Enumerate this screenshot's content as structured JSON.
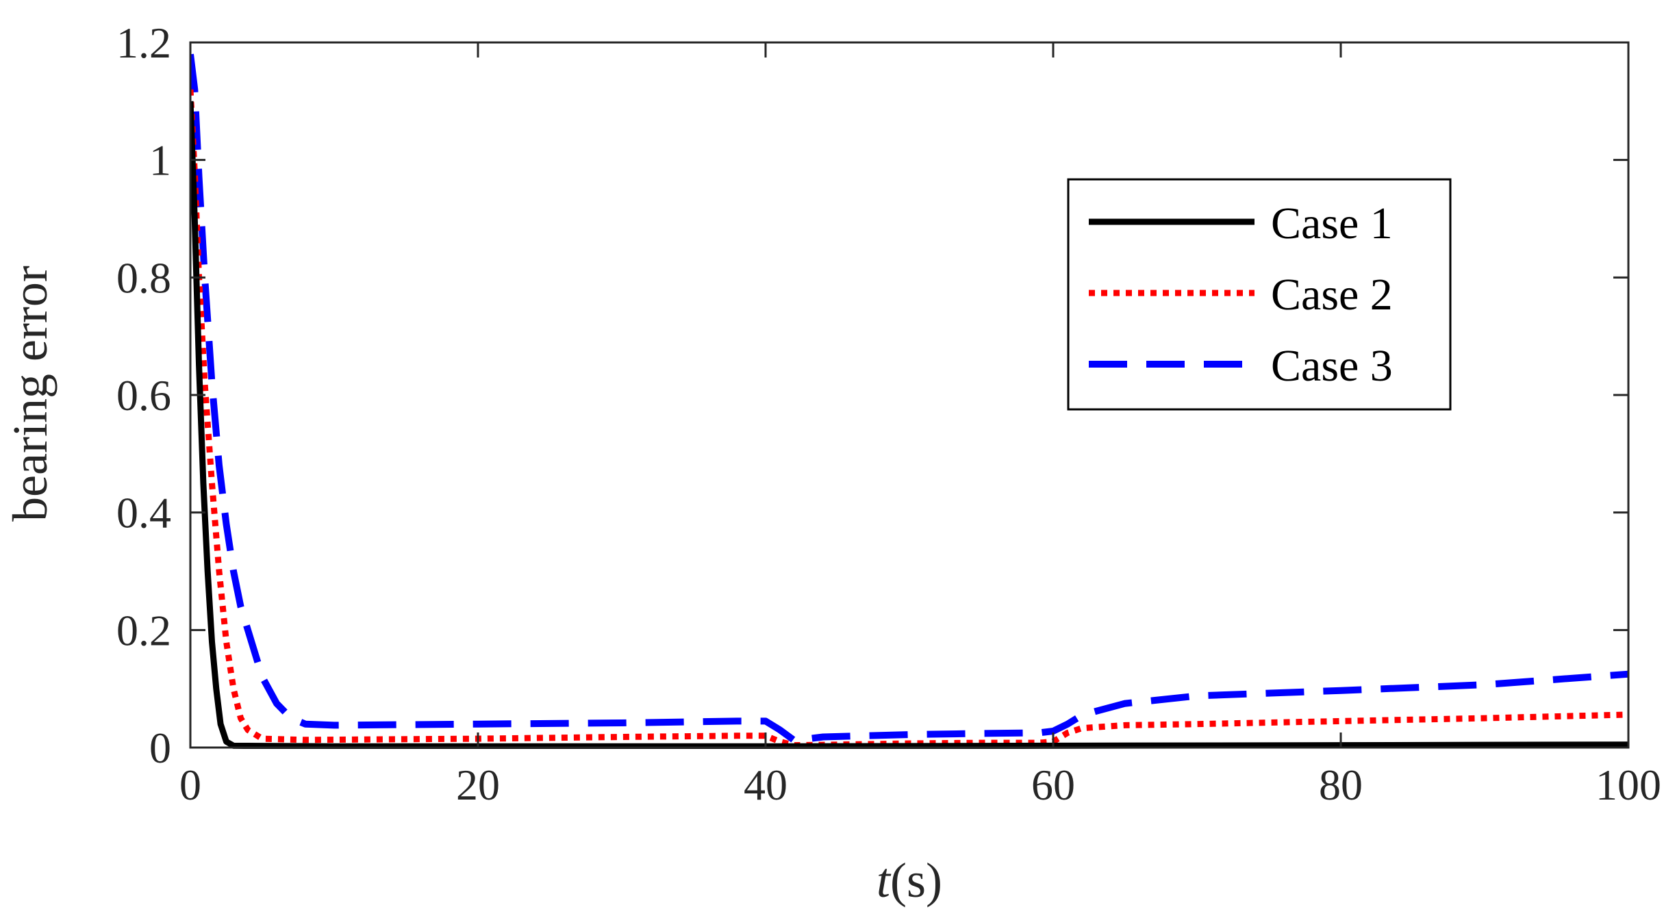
{
  "chart_data": {
    "type": "line",
    "title": "",
    "xlabel_var": "t",
    "xlabel_unit": "(s)",
    "ylabel": "bearing error",
    "xlim": [
      0,
      100
    ],
    "ylim": [
      0,
      1.2
    ],
    "xticks": [
      0,
      20,
      40,
      60,
      80,
      100
    ],
    "xtick_labels": [
      "0",
      "20",
      "40",
      "60",
      "80",
      "100"
    ],
    "yticks": [
      0,
      0.2,
      0.4,
      0.6,
      0.8,
      1,
      1.2
    ],
    "ytick_labels": [
      "0",
      "0.2",
      "0.4",
      "0.6",
      "0.8",
      "1",
      "1.2"
    ],
    "grid": false,
    "legend_position": "upper-right",
    "series": [
      {
        "name": "Case 1",
        "color": "#000000",
        "style": "solid",
        "x": [
          0,
          0.3,
          0.6,
          0.9,
          1.2,
          1.5,
          1.8,
          2.1,
          2.5,
          3,
          10,
          40,
          60,
          80,
          100
        ],
        "y": [
          1.1,
          0.9,
          0.65,
          0.45,
          0.3,
          0.18,
          0.1,
          0.04,
          0.01,
          0.003,
          0.002,
          0.002,
          0.003,
          0.004,
          0.005
        ]
      },
      {
        "name": "Case 2",
        "color": "#ff0000",
        "style": "dotted",
        "x": [
          0,
          0.3,
          0.6,
          1,
          1.5,
          2,
          2.5,
          3,
          3.5,
          4,
          5,
          8,
          20,
          30,
          38,
          40,
          41,
          42,
          45,
          50,
          55,
          59,
          60,
          61,
          62,
          65,
          70,
          80,
          90,
          100
        ],
        "y": [
          1.12,
          0.98,
          0.8,
          0.62,
          0.45,
          0.3,
          0.18,
          0.1,
          0.05,
          0.03,
          0.015,
          0.013,
          0.015,
          0.018,
          0.02,
          0.02,
          0.01,
          0.004,
          0.005,
          0.007,
          0.008,
          0.008,
          0.01,
          0.025,
          0.033,
          0.038,
          0.04,
          0.045,
          0.05,
          0.056
        ]
      },
      {
        "name": "Case 3",
        "color": "#0000ff",
        "style": "dashed",
        "x": [
          0,
          0.3,
          0.6,
          1,
          1.5,
          2,
          2.5,
          3,
          3.5,
          4,
          5,
          6,
          7,
          8,
          10,
          20,
          30,
          38,
          40,
          41,
          42,
          44,
          50,
          55,
          59,
          60,
          61,
          62,
          63,
          65,
          70,
          80,
          90,
          100
        ],
        "y": [
          1.18,
          1.12,
          0.97,
          0.8,
          0.62,
          0.48,
          0.38,
          0.3,
          0.24,
          0.2,
          0.12,
          0.075,
          0.05,
          0.04,
          0.038,
          0.04,
          0.042,
          0.045,
          0.045,
          0.03,
          0.012,
          0.018,
          0.022,
          0.024,
          0.025,
          0.028,
          0.04,
          0.055,
          0.062,
          0.075,
          0.088,
          0.097,
          0.107,
          0.125
        ]
      }
    ]
  }
}
